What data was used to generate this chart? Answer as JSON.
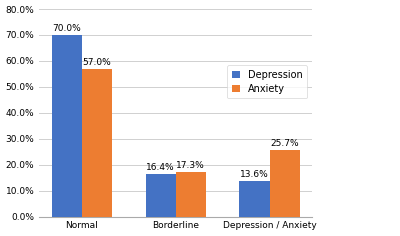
{
  "categories": [
    "Normal",
    "Borderline",
    "Depression / Anxiety"
  ],
  "depression_values": [
    70.0,
    16.4,
    13.6
  ],
  "anxiety_values": [
    57.0,
    17.3,
    25.7
  ],
  "depression_color": "#4472C4",
  "anxiety_color": "#ED7D31",
  "ylim": [
    0,
    80
  ],
  "yticks": [
    0,
    10,
    20,
    30,
    40,
    50,
    60,
    70,
    80
  ],
  "ytick_labels": [
    "0.0%",
    "10.0%",
    "20.0%",
    "30.0%",
    "40.0%",
    "50.0%",
    "60.0%",
    "70.0%",
    "80.0%"
  ],
  "legend_labels": [
    "Depression",
    "Anxiety"
  ],
  "bar_width": 0.32,
  "label_fontsize": 6.5,
  "tick_fontsize": 6.5,
  "legend_fontsize": 7,
  "background_color": "#ffffff",
  "grid_color": "#d0d0d0"
}
